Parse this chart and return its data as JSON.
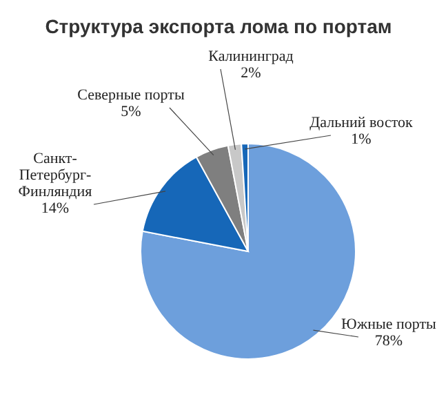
{
  "chart_data": {
    "type": "pie",
    "title": "Структура экспорта лома по портам",
    "categories": [
      "Южные порты",
      "Санкт-Петербург-Финляндия",
      "Северные порты",
      "Калининград",
      "Дальний восток"
    ],
    "values": [
      78,
      14,
      5,
      2,
      1
    ],
    "colors": [
      "#6d9fdc",
      "#1667b8",
      "#7f7f7f",
      "#c8c8c8",
      "#1667b8"
    ],
    "value_labels": [
      "78%",
      "14%",
      "5%",
      "2%",
      "1%"
    ]
  }
}
